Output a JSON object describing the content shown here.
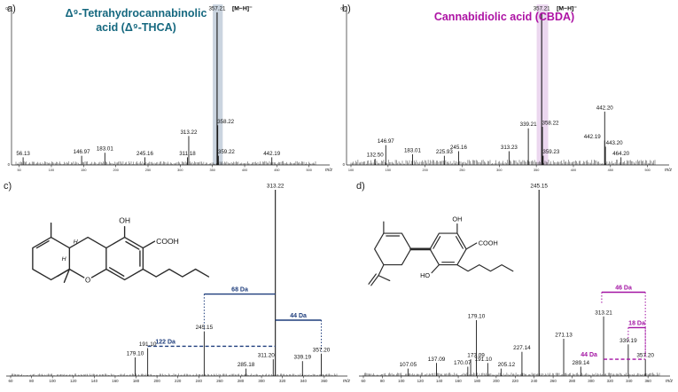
{
  "panels": [
    {
      "id": "a",
      "letter": "a)",
      "title_lines": [
        "Δ⁹-Tetrahydrocannabinolic",
        "acid (Δ⁹-THCA)"
      ],
      "title_color": "#15687f"
    },
    {
      "id": "b",
      "letter": "b)",
      "title_lines": [
        "Cannabidiolic acid (CBDA)"
      ],
      "title_color": "#ad13a4"
    },
    {
      "id": "c",
      "letter": "c)"
    },
    {
      "id": "d",
      "letter": "d)"
    }
  ],
  "structures": {
    "thca": {
      "labels": {
        "oh": "OH",
        "cooh": "COOH",
        "o": "O",
        "h_top": "H",
        "h_bottom": "H"
      }
    },
    "cbda": {
      "labels": {
        "oh_top": "OH",
        "cooh": "COOH",
        "ho": "HO"
      }
    }
  },
  "colors": {
    "thca_accent": "#15687f",
    "cbda_accent": "#ad13a4",
    "bracket_blue": "#1e3d7c",
    "bracket_purple": "#a313a3",
    "highlight_blue": "#8099b3",
    "highlight_purple": "#cf9fd9"
  },
  "chart_data": [
    {
      "panel": "a",
      "type": "bar",
      "title": "Δ⁹-Tetrahydrocannabinolic acid (Δ⁹-THCA)",
      "xlabel": "m/z",
      "ylabel": "",
      "ylim": [
        0,
        100
      ],
      "xlim": [
        45,
        510
      ],
      "tick_step": 50,
      "noise": 2.5,
      "y_axis_labels": [
        "100",
        "0"
      ],
      "precursor_annotation": "[M−H]⁻",
      "highlight": {
        "from": 350.5,
        "to": 366,
        "color": "#8099b3"
      },
      "peaks": [
        {
          "mz": 56.13,
          "i": 5,
          "label": "56.13"
        },
        {
          "mz": 146.97,
          "i": 6,
          "label": "146.97"
        },
        {
          "mz": 183.01,
          "i": 8,
          "label": "183.01"
        },
        {
          "mz": 245.16,
          "i": 5,
          "label": "245.16"
        },
        {
          "mz": 311.18,
          "i": 5,
          "label": "311.18"
        },
        {
          "mz": 313.22,
          "i": 19,
          "label": "313.22"
        },
        {
          "mz": 357.21,
          "i": 100,
          "label": "357.21",
          "precursor": true
        },
        {
          "mz": 358.22,
          "i": 26,
          "label": "358.22",
          "dx": 9
        },
        {
          "mz": 359.22,
          "i": 6,
          "label": "359.22",
          "dx": 9
        },
        {
          "mz": 442.19,
          "i": 5,
          "label": "442.19"
        }
      ]
    },
    {
      "panel": "b",
      "type": "bar",
      "title": "Cannabidiolic acid (CBDA)",
      "xlabel": "m/z",
      "ylabel": "",
      "ylim": [
        0,
        100
      ],
      "xlim": [
        100,
        510
      ],
      "tick_step": 50,
      "noise": 3.5,
      "y_axis_labels": [
        "100",
        "0"
      ],
      "precursor_annotation": "[M−H]⁻",
      "highlight": {
        "from": 350.5,
        "to": 366,
        "color": "#cf9fd9"
      },
      "peaks": [
        {
          "mz": 132.5,
          "i": 4,
          "label": "132.50"
        },
        {
          "mz": 146.97,
          "i": 13,
          "label": "146.97"
        },
        {
          "mz": 183.01,
          "i": 7,
          "label": "183.01"
        },
        {
          "mz": 225.93,
          "i": 6,
          "label": "225.93"
        },
        {
          "mz": 245.16,
          "i": 9,
          "label": "245.16"
        },
        {
          "mz": 313.23,
          "i": 9,
          "label": "313.23"
        },
        {
          "mz": 339.21,
          "i": 24,
          "label": "339.21"
        },
        {
          "mz": 357.21,
          "i": 100,
          "label": "357.21",
          "precursor": true
        },
        {
          "mz": 358.22,
          "i": 25,
          "label": "358.22",
          "dx": 9
        },
        {
          "mz": 359.23,
          "i": 6,
          "label": "359.23",
          "dx": 9
        },
        {
          "mz": 442.19,
          "i": 16,
          "label": "442.19",
          "dx": -14
        },
        {
          "mz": 442.2,
          "i": 35,
          "label": "442.20"
        },
        {
          "mz": 443.2,
          "i": 12,
          "label": "443.20",
          "dx": 10
        },
        {
          "mz": 464.2,
          "i": 5,
          "label": "464.20"
        }
      ]
    },
    {
      "panel": "c",
      "type": "bar",
      "title": "",
      "xlabel": "m/z",
      "ylabel": "",
      "ylim": [
        0,
        100
      ],
      "xlim": [
        60,
        372
      ],
      "tick_step": 20,
      "noise": 1.3,
      "brackets": [
        {
          "label": "122 Da",
          "from": 191.1,
          "to": 313.22,
          "h": 16,
          "style": "dashed",
          "color": "#1e3d7c",
          "ldx": -52
        },
        {
          "label": "68 Da",
          "from": 245.15,
          "to": 313.22,
          "h": 44,
          "style": "solid",
          "color": "#1e3d7c"
        },
        {
          "label": "44 Da",
          "from": 313.22,
          "to": 357.2,
          "h": 30,
          "style": "solid",
          "color": "#1e3d7c"
        }
      ],
      "peaks": [
        {
          "mz": 179.1,
          "i": 10,
          "label": "179.10"
        },
        {
          "mz": 191.1,
          "i": 15,
          "label": "191.10"
        },
        {
          "mz": 245.15,
          "i": 24,
          "label": "245.15"
        },
        {
          "mz": 285.18,
          "i": 4,
          "label": "285.18"
        },
        {
          "mz": 311.2,
          "i": 9,
          "label": "311.20",
          "dx": -8
        },
        {
          "mz": 313.22,
          "i": 100,
          "label": "313.22"
        },
        {
          "mz": 339.19,
          "i": 8,
          "label": "339.19"
        },
        {
          "mz": 357.2,
          "i": 12,
          "label": "357.20"
        }
      ]
    },
    {
      "panel": "d",
      "type": "bar",
      "title": "",
      "xlabel": "m/z",
      "ylabel": "",
      "ylim": [
        0,
        100
      ],
      "xlim": [
        60,
        372
      ],
      "tick_step": 20,
      "noise": 1.8,
      "brackets": [
        {
          "label": "46 Da",
          "from": 311.2,
          "to": 357.2,
          "h": 45,
          "style": "solid",
          "color": "#a313a3"
        },
        {
          "label": "18 Da",
          "from": 339.19,
          "to": 357.2,
          "h": 26,
          "style": "solid",
          "color": "#a313a3"
        },
        {
          "label": "44 Da",
          "from": 313.21,
          "to": 357.2,
          "h": 9,
          "style": "dashed",
          "color": "#a313a3",
          "ldx": -40
        }
      ],
      "peaks": [
        {
          "mz": 107.05,
          "i": 4,
          "label": "107.05"
        },
        {
          "mz": 137.09,
          "i": 7,
          "label": "137.09"
        },
        {
          "mz": 170.07,
          "i": 5,
          "label": "170.07",
          "dx": -6
        },
        {
          "mz": 173.09,
          "i": 9,
          "label": "173.09",
          "dx": 6
        },
        {
          "mz": 179.1,
          "i": 30,
          "label": "179.10"
        },
        {
          "mz": 191.1,
          "i": 7,
          "label": "191.10",
          "dx": -5
        },
        {
          "mz": 205.12,
          "i": 4,
          "label": "205.12",
          "dx": 6
        },
        {
          "mz": 227.14,
          "i": 13,
          "label": "227.14"
        },
        {
          "mz": 245.15,
          "i": 100,
          "label": "245.15"
        },
        {
          "mz": 271.13,
          "i": 20,
          "label": "271.13"
        },
        {
          "mz": 289.14,
          "i": 5,
          "label": "289.14"
        },
        {
          "mz": 313.21,
          "i": 32,
          "label": "313.21"
        },
        {
          "mz": 339.19,
          "i": 17,
          "label": "339.19"
        },
        {
          "mz": 357.2,
          "i": 9,
          "label": "357.20"
        }
      ]
    }
  ]
}
